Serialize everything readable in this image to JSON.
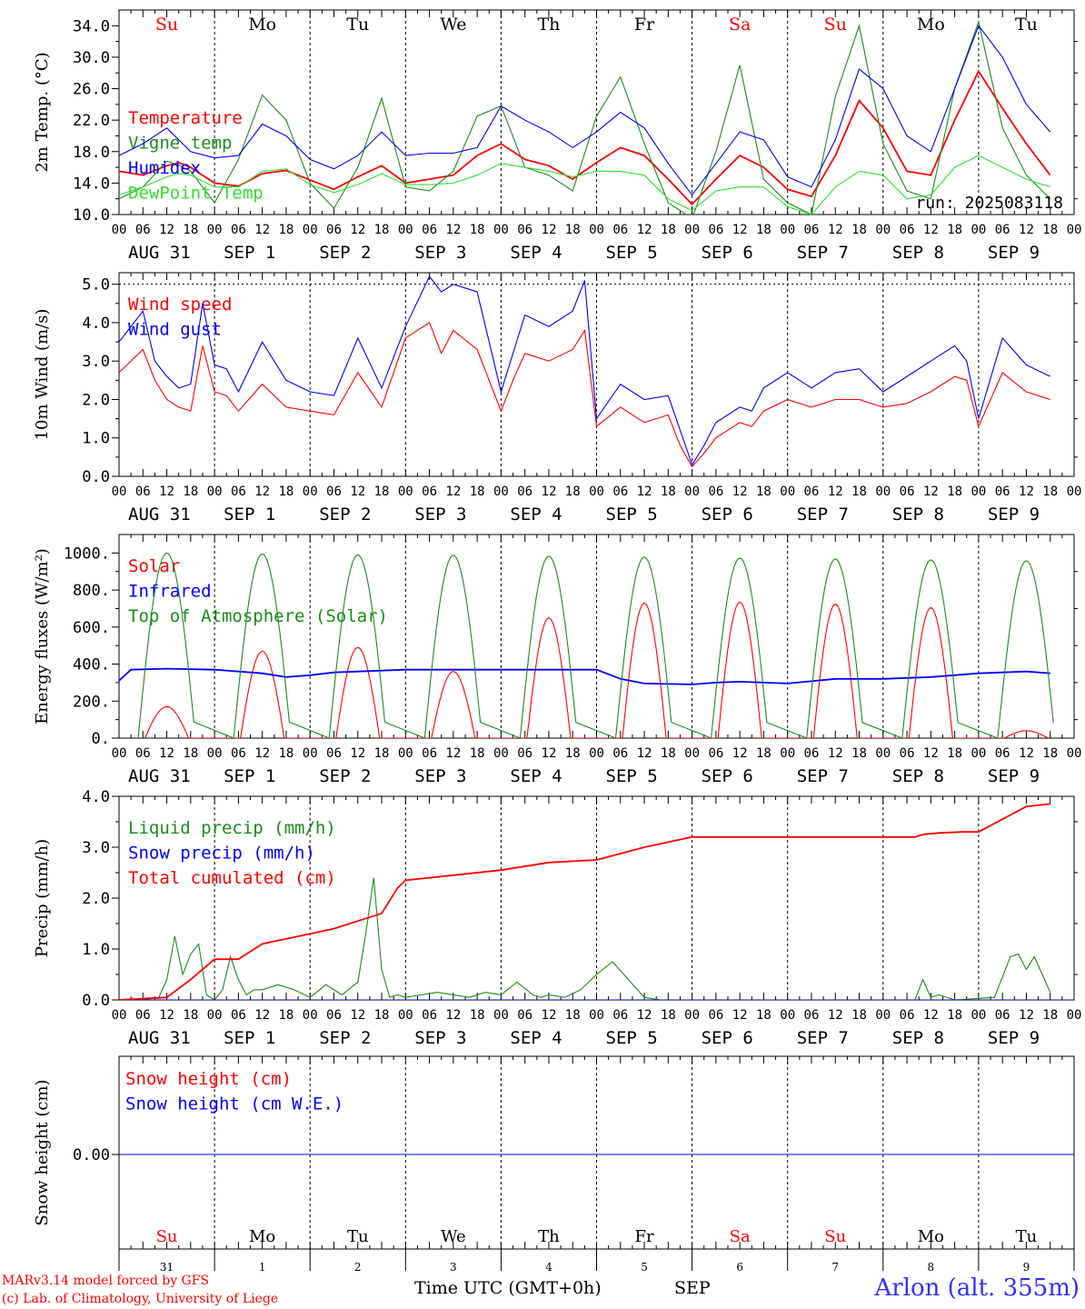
{
  "colors": {
    "red": "#ff0000",
    "green": "#1a8c1a",
    "blue": "#0000ff",
    "lime": "#33dd33",
    "axis": "#000000"
  },
  "days": [
    {
      "abbr": "Su",
      "weekend": true,
      "date_label": "AUG 31",
      "num": "31"
    },
    {
      "abbr": "Mo",
      "weekend": false,
      "date_label": "SEP  1",
      "num": "1"
    },
    {
      "abbr": "Tu",
      "weekend": false,
      "date_label": "SEP  2",
      "num": "2"
    },
    {
      "abbr": "We",
      "weekend": false,
      "date_label": "SEP  3",
      "num": "3"
    },
    {
      "abbr": "Th",
      "weekend": false,
      "date_label": "SEP  4",
      "num": "4"
    },
    {
      "abbr": "Fr",
      "weekend": false,
      "date_label": "SEP  5",
      "num": "5"
    },
    {
      "abbr": "Sa",
      "weekend": true,
      "date_label": "SEP  6",
      "num": "6"
    },
    {
      "abbr": "Su",
      "weekend": true,
      "date_label": "SEP  7",
      "num": "7"
    },
    {
      "abbr": "Mo",
      "weekend": false,
      "date_label": "SEP  8",
      "num": "8"
    },
    {
      "abbr": "Tu",
      "weekend": false,
      "date_label": "SEP  9",
      "num": "9"
    }
  ],
  "hour_ticks": [
    "00",
    "06",
    "12",
    "18"
  ],
  "footer": {
    "model_line": "MARv3.14 model forced by GFS",
    "credit_line": "(c) Lab. of Climatology, University of Liege",
    "time_label": "Time UTC (GMT+0h)",
    "month_label": "SEP",
    "station": "Arlon (alt. 355m)"
  },
  "chart_data": [
    {
      "id": "temperature",
      "type": "line",
      "ylabel": "2m Temp. (°C)",
      "ylim": [
        10,
        36
      ],
      "yticks": [
        10,
        14,
        18,
        22,
        26,
        30,
        34
      ],
      "ytick_labels": [
        "10.0",
        "14.0",
        "18.0",
        "22.0",
        "26.0",
        "30.0",
        "34.0"
      ],
      "x_unit": "hours from Aug 31 00 UTC",
      "annotation": "run: 2025083118",
      "series": [
        {
          "name": "Temperature",
          "color": "#ff0000",
          "x": [
            0,
            6,
            12,
            15,
            18,
            24,
            30,
            36,
            42,
            48,
            54,
            60,
            66,
            72,
            78,
            84,
            90,
            96,
            102,
            108,
            114,
            120,
            126,
            132,
            138,
            144,
            150,
            156,
            162,
            168,
            174,
            180,
            186,
            192,
            198,
            204,
            210,
            216,
            222,
            228,
            234
          ],
          "y": [
            15.5,
            15.0,
            16.2,
            16.6,
            16.0,
            14.0,
            13.6,
            15.2,
            15.6,
            14.4,
            13.2,
            14.8,
            16.2,
            14.0,
            14.5,
            15.0,
            17.5,
            19.0,
            17.0,
            16.2,
            14.5,
            16.6,
            18.5,
            17.5,
            14.5,
            11.3,
            14.5,
            17.5,
            16.0,
            13.2,
            12.3,
            17.5,
            24.5,
            21.0,
            15.5,
            15.0,
            22.0,
            28.2,
            23.5,
            19.0,
            15.0
          ]
        },
        {
          "name": "Vigne temp",
          "color": "#1a8c1a",
          "x": [
            0,
            6,
            12,
            15,
            18,
            24,
            30,
            36,
            42,
            48,
            54,
            60,
            66,
            72,
            78,
            84,
            90,
            96,
            102,
            108,
            114,
            120,
            126,
            132,
            138,
            144,
            150,
            156,
            162,
            168,
            174,
            180,
            186,
            192,
            198,
            204,
            210,
            216,
            222,
            228,
            234
          ],
          "y": [
            12.0,
            13.5,
            16.8,
            16.3,
            15.5,
            11.5,
            17.0,
            25.2,
            22.0,
            14.0,
            10.8,
            16.0,
            24.8,
            13.5,
            13.0,
            15.5,
            22.5,
            23.8,
            16.0,
            15.0,
            13.0,
            22.5,
            27.5,
            19.0,
            11.5,
            9.5,
            18.0,
            29.0,
            14.5,
            11.5,
            10.0,
            25.0,
            34.0,
            19.0,
            13.0,
            12.0,
            26.0,
            34.5,
            21.0,
            15.0,
            12.0
          ]
        },
        {
          "name": "Humidex",
          "color": "#0000ff",
          "x": [
            0,
            6,
            12,
            15,
            18,
            24,
            30,
            36,
            42,
            48,
            54,
            60,
            66,
            72,
            78,
            84,
            90,
            96,
            102,
            108,
            114,
            120,
            126,
            132,
            138,
            144,
            150,
            156,
            162,
            168,
            174,
            180,
            186,
            192,
            198,
            204,
            210,
            216,
            222,
            228,
            234
          ],
          "y": [
            17.5,
            19.0,
            21.0,
            19.5,
            18.0,
            17.2,
            17.5,
            21.5,
            20.0,
            17.0,
            15.8,
            17.5,
            20.5,
            17.5,
            17.8,
            17.8,
            18.5,
            23.8,
            22.0,
            20.5,
            18.5,
            20.5,
            23.0,
            21.0,
            16.5,
            12.5,
            16.5,
            20.5,
            19.5,
            14.8,
            13.5,
            19.5,
            28.5,
            26.0,
            20.0,
            18.0,
            26.0,
            34.0,
            30.0,
            24.0,
            20.5
          ]
        },
        {
          "name": "DewPoint Temp",
          "color": "#33dd33",
          "x": [
            0,
            6,
            12,
            15,
            18,
            24,
            30,
            36,
            42,
            48,
            54,
            60,
            66,
            72,
            78,
            84,
            90,
            96,
            102,
            108,
            114,
            120,
            126,
            132,
            138,
            144,
            150,
            156,
            162,
            168,
            174,
            180,
            186,
            192,
            198,
            204,
            210,
            216,
            222,
            228,
            234
          ],
          "y": [
            12.5,
            13.5,
            14.8,
            15.2,
            15.0,
            13.5,
            13.5,
            15.5,
            15.8,
            13.8,
            12.8,
            13.8,
            15.2,
            13.8,
            13.8,
            14.0,
            15.0,
            16.5,
            16.0,
            15.5,
            14.8,
            15.5,
            15.5,
            15.0,
            12.0,
            10.5,
            13.0,
            13.5,
            13.5,
            11.0,
            10.0,
            13.5,
            15.5,
            15.0,
            12.0,
            12.5,
            16.0,
            17.5,
            16.0,
            14.5,
            13.5
          ]
        }
      ]
    },
    {
      "id": "wind",
      "type": "line",
      "ylabel": "10m Wind (m/s)",
      "ylim": [
        0,
        5.3
      ],
      "yticks": [
        0,
        1,
        2,
        3,
        4,
        5
      ],
      "ytick_labels": [
        "0.0",
        "1.0",
        "2.0",
        "3.0",
        "4.0",
        "5.0"
      ],
      "series": [
        {
          "name": "Wind speed",
          "color": "#ff0000",
          "x": [
            0,
            6,
            9,
            12,
            15,
            18,
            21,
            24,
            27,
            30,
            36,
            42,
            48,
            54,
            60,
            66,
            72,
            78,
            81,
            84,
            90,
            96,
            99,
            102,
            108,
            114,
            117,
            120,
            126,
            132,
            138,
            141,
            144,
            147,
            150,
            156,
            159,
            162,
            168,
            174,
            180,
            186,
            192,
            198,
            204,
            210,
            213,
            216,
            222,
            228,
            234
          ],
          "y": [
            2.7,
            3.3,
            2.5,
            2.0,
            1.8,
            1.7,
            3.4,
            2.2,
            2.1,
            1.7,
            2.4,
            1.8,
            1.7,
            1.6,
            2.7,
            1.8,
            3.6,
            4.0,
            3.2,
            3.8,
            3.3,
            1.7,
            2.5,
            3.2,
            3.0,
            3.3,
            3.8,
            1.3,
            1.8,
            1.4,
            1.6,
            0.8,
            0.25,
            0.6,
            1.0,
            1.4,
            1.3,
            1.7,
            2.0,
            1.8,
            2.0,
            2.0,
            1.8,
            1.9,
            2.2,
            2.6,
            2.5,
            1.3,
            2.7,
            2.2,
            2.0
          ]
        },
        {
          "name": "Wind gust",
          "color": "#0000ff",
          "x": [
            0,
            6,
            9,
            12,
            15,
            18,
            21,
            24,
            27,
            30,
            36,
            42,
            48,
            54,
            60,
            66,
            72,
            78,
            81,
            84,
            90,
            96,
            99,
            102,
            108,
            114,
            117,
            120,
            126,
            132,
            138,
            141,
            144,
            147,
            150,
            156,
            159,
            162,
            168,
            174,
            180,
            186,
            192,
            198,
            204,
            210,
            213,
            216,
            222,
            228,
            234
          ],
          "y": [
            3.5,
            4.3,
            3.0,
            2.6,
            2.3,
            2.4,
            4.5,
            2.9,
            2.8,
            2.2,
            3.5,
            2.5,
            2.2,
            2.1,
            3.6,
            2.3,
            3.9,
            5.2,
            4.8,
            5.0,
            4.8,
            2.2,
            3.2,
            4.2,
            3.9,
            4.3,
            5.1,
            1.5,
            2.4,
            2.0,
            2.1,
            1.2,
            0.3,
            0.8,
            1.4,
            1.8,
            1.7,
            2.3,
            2.7,
            2.3,
            2.7,
            2.8,
            2.2,
            2.6,
            3.0,
            3.4,
            3.0,
            1.5,
            3.6,
            2.9,
            2.6
          ]
        }
      ]
    },
    {
      "id": "energy",
      "type": "line",
      "ylabel": "Energy fluxes (W/m²)",
      "ylim": [
        0,
        1100
      ],
      "yticks": [
        0,
        200,
        400,
        600,
        800,
        1000
      ],
      "ytick_labels": [
        "0.",
        "200.",
        "400.",
        "600.",
        "800.",
        "1000."
      ],
      "series": [
        {
          "name": "Solar",
          "color": "#ff0000",
          "daily_peak": [
            170,
            470,
            490,
            360,
            650,
            730,
            735,
            725,
            705,
            40
          ]
        },
        {
          "name": "Infrared",
          "color": "#0000ff",
          "x": [
            0,
            3,
            12,
            24,
            30,
            36,
            42,
            48,
            54,
            60,
            66,
            72,
            84,
            96,
            108,
            120,
            126,
            132,
            144,
            150,
            156,
            168,
            180,
            192,
            204,
            216,
            228,
            234
          ],
          "y": [
            310,
            370,
            375,
            370,
            360,
            350,
            330,
            340,
            355,
            360,
            365,
            370,
            370,
            370,
            370,
            370,
            320,
            295,
            290,
            300,
            305,
            295,
            320,
            320,
            330,
            350,
            360,
            350
          ]
        },
        {
          "name": "Top of Atmosphere (Solar)",
          "color": "#1a8c1a",
          "daily_peak": [
            1000,
            995,
            990,
            988,
            983,
            978,
            973,
            968,
            963,
            958
          ]
        }
      ]
    },
    {
      "id": "precip",
      "type": "line",
      "ylabel": "Precip (mm/h)",
      "ylim": [
        0,
        4
      ],
      "yticks": [
        0,
        1,
        2,
        3,
        4
      ],
      "ytick_labels": [
        "0.0",
        "1.0",
        "2.0",
        "3.0",
        "4.0"
      ],
      "series": [
        {
          "name": "Liquid precip (mm/h)",
          "color": "#1a8c1a",
          "x": [
            0,
            6,
            10,
            12,
            14,
            16,
            18,
            20,
            22,
            24,
            26,
            28,
            30,
            32,
            34,
            36,
            40,
            44,
            48,
            52,
            56,
            60,
            62,
            64,
            66,
            68,
            70,
            72,
            76,
            80,
            84,
            88,
            92,
            96,
            100,
            104,
            106,
            108,
            112,
            116,
            120,
            124,
            128,
            132,
            136,
            138,
            140,
            142,
            144,
            150,
            200,
            202,
            204,
            206,
            210,
            220,
            224,
            226,
            228,
            230,
            234
          ],
          "y": [
            0,
            0,
            0.05,
            0.4,
            1.25,
            0.5,
            0.9,
            1.1,
            0.1,
            0,
            0.2,
            0.85,
            0.4,
            0.1,
            0.2,
            0.2,
            0.3,
            0.2,
            0.05,
            0.3,
            0.1,
            0.35,
            1.3,
            2.4,
            0.6,
            0.05,
            0.1,
            0.05,
            0.1,
            0.15,
            0.1,
            0.05,
            0.15,
            0.1,
            0.35,
            0.1,
            0.05,
            0.1,
            0.05,
            0.2,
            0.5,
            0.75,
            0.4,
            0.05,
            0,
            0,
            0,
            0,
            0,
            0,
            0,
            0.4,
            0.05,
            0.1,
            0,
            0.05,
            0.85,
            0.9,
            0.6,
            0.85,
            0.15
          ]
        },
        {
          "name": "Snow precip (mm/h)",
          "color": "#0000ff",
          "x": [
            0,
            240
          ],
          "y": [
            0,
            0
          ]
        },
        {
          "name": "Total cumulated (cm)",
          "color": "#ff0000",
          "x": [
            0,
            12,
            18,
            24,
            30,
            36,
            48,
            54,
            60,
            66,
            70,
            72,
            84,
            96,
            108,
            120,
            132,
            144,
            150,
            156,
            168,
            192,
            200,
            202,
            206,
            212,
            216,
            222,
            228,
            234
          ],
          "y": [
            0,
            0.05,
            0.4,
            0.8,
            0.8,
            1.1,
            1.3,
            1.4,
            1.55,
            1.7,
            2.2,
            2.35,
            2.45,
            2.55,
            2.7,
            2.75,
            3.0,
            3.2,
            3.2,
            3.2,
            3.2,
            3.2,
            3.2,
            3.25,
            3.28,
            3.3,
            3.3,
            3.55,
            3.8,
            3.85
          ]
        }
      ]
    },
    {
      "id": "snow",
      "type": "line",
      "ylabel": "Snow height (cm)",
      "yticks": [
        0
      ],
      "ytick_labels": [
        "0.00"
      ],
      "series": [
        {
          "name": "Snow height (cm)",
          "color": "#ff0000",
          "x": [
            0,
            240
          ],
          "y": [
            0,
            0
          ]
        },
        {
          "name": "Snow height (cm W.E.)",
          "color": "#0000ff",
          "x": [
            0,
            240
          ],
          "y": [
            0,
            0
          ]
        }
      ]
    }
  ]
}
